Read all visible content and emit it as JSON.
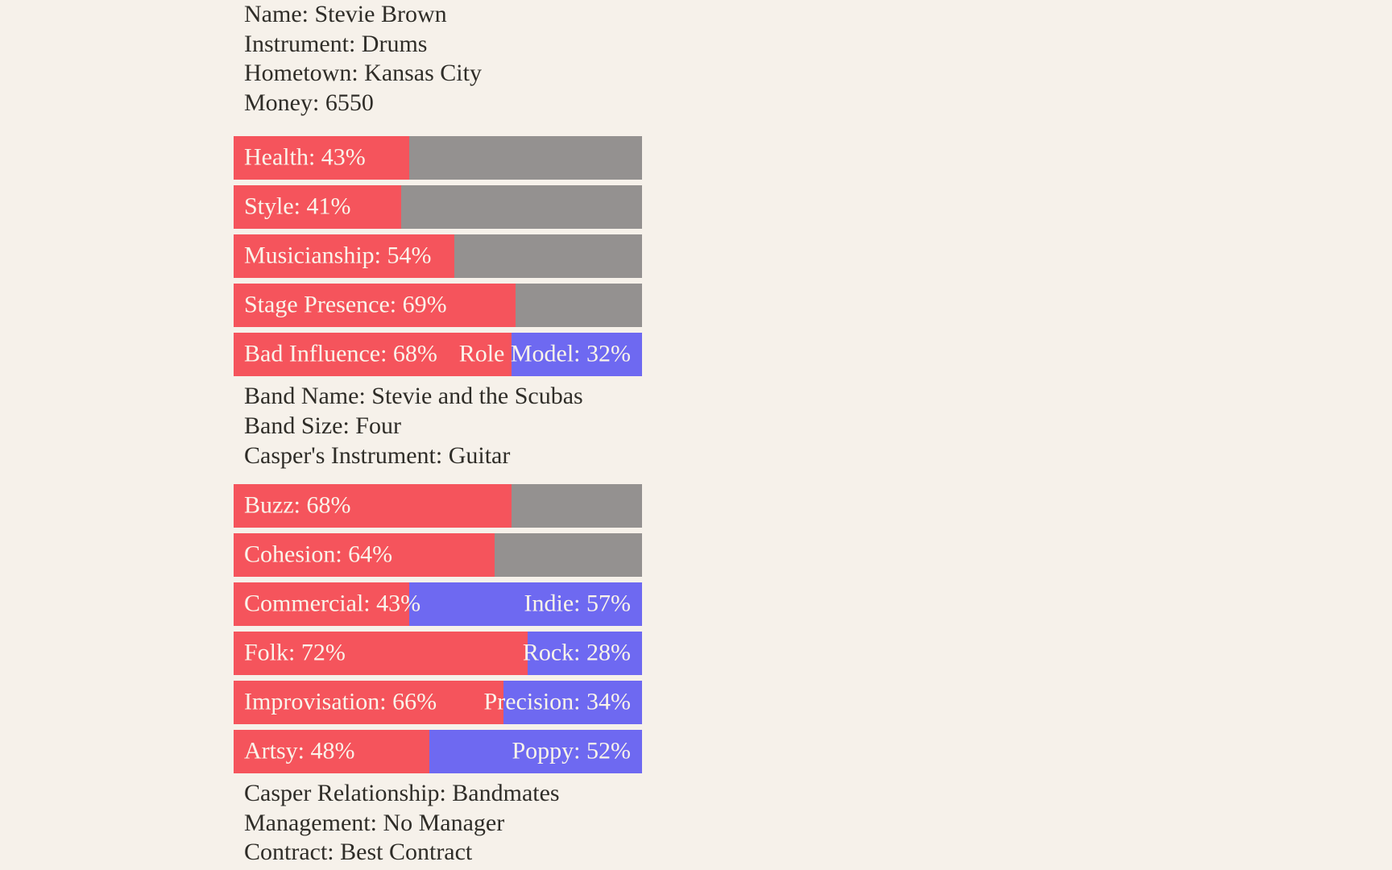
{
  "colors": {
    "background": "#f6f1ea",
    "bar_left": "#f5545c",
    "bar_right_neutral": "#949190",
    "bar_right_alt": "#6e69f1",
    "bar_label": "#faf4ea",
    "text": "#2f2d28"
  },
  "musician": {
    "lines": [
      "Name: Stevie Brown",
      "Instrument: Drums",
      "Hometown: Kansas City",
      "Money: 6550"
    ]
  },
  "musician_stats": [
    {
      "left_label": "Health: 43%",
      "left_pct": 43,
      "right_label": "",
      "right_type": "neutral"
    },
    {
      "left_label": "Style: 41%",
      "left_pct": 41,
      "right_label": "",
      "right_type": "neutral"
    },
    {
      "left_label": "Musicianship: 54%",
      "left_pct": 54,
      "right_label": "",
      "right_type": "neutral"
    },
    {
      "left_label": "Stage Presence: 69%",
      "left_pct": 69,
      "right_label": "",
      "right_type": "neutral"
    },
    {
      "left_label": "Bad Influence: 68%",
      "left_pct": 68,
      "right_label": "Role Model: 32%",
      "right_type": "alt"
    }
  ],
  "band": {
    "lines": [
      "Band Name: Stevie and the Scubas",
      "Band Size: Four",
      "Casper's Instrument: Guitar"
    ]
  },
  "band_stats": [
    {
      "left_label": "Buzz: 68%",
      "left_pct": 68,
      "right_label": "",
      "right_type": "neutral"
    },
    {
      "left_label": "Cohesion: 64%",
      "left_pct": 64,
      "right_label": "",
      "right_type": "neutral"
    },
    {
      "left_label": "Commercial: 43%",
      "left_pct": 43,
      "right_label": "Indie: 57%",
      "right_type": "alt"
    },
    {
      "left_label": "Folk: 72%",
      "left_pct": 72,
      "right_label": "Rock: 28%",
      "right_type": "alt"
    },
    {
      "left_label": "Improvisation: 66%",
      "left_pct": 66,
      "right_label": "Precision: 34%",
      "right_type": "alt"
    },
    {
      "left_label": "Artsy: 48%",
      "left_pct": 48,
      "right_label": "Poppy: 52%",
      "right_type": "alt"
    }
  ],
  "status": {
    "lines": [
      "Casper Relationship: Bandmates",
      "Management: No Manager",
      "Contract: Best Contract"
    ]
  }
}
